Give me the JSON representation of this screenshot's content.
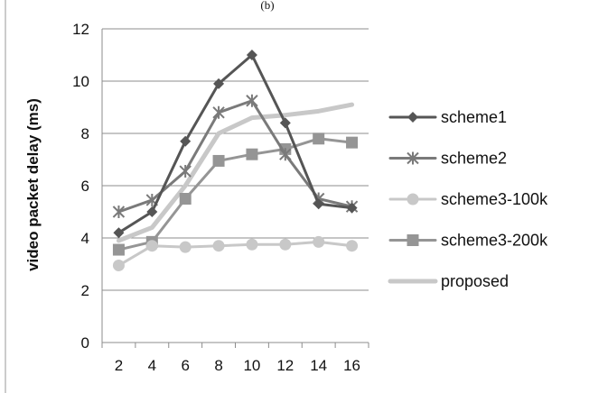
{
  "chart_data": {
    "type": "line",
    "title": "(b)",
    "xlabel": "",
    "ylabel": "video packet delay (ms)",
    "x": [
      2,
      4,
      6,
      8,
      10,
      12,
      14,
      16
    ],
    "ylim": [
      0,
      12
    ],
    "yticks": [
      0,
      2,
      4,
      6,
      8,
      10,
      12
    ],
    "grid": "horizontal",
    "legend_position": "right",
    "series": [
      {
        "name": "scheme1",
        "values": [
          4.2,
          5.0,
          7.7,
          9.9,
          11.0,
          8.4,
          5.3,
          5.15
        ],
        "color": "#555555",
        "marker": "diamond",
        "width": 3
      },
      {
        "name": "scheme2",
        "values": [
          5.0,
          5.45,
          6.55,
          8.8,
          9.25,
          7.2,
          5.5,
          5.2
        ],
        "color": "#7a7a7a",
        "marker": "star",
        "width": 3
      },
      {
        "name": "scheme3-100k",
        "values": [
          2.95,
          3.7,
          3.65,
          3.7,
          3.75,
          3.75,
          3.85,
          3.7
        ],
        "color": "#c8c8c8",
        "marker": "circle",
        "width": 3
      },
      {
        "name": "scheme3-200k",
        "values": [
          3.55,
          3.85,
          5.5,
          6.95,
          7.2,
          7.4,
          7.8,
          7.65
        ],
        "color": "#959595",
        "marker": "square",
        "width": 3
      },
      {
        "name": "proposed",
        "values": [
          3.9,
          4.4,
          6.0,
          8.0,
          8.6,
          8.7,
          8.85,
          9.1
        ],
        "color": "#c8c8c8",
        "marker": "none",
        "width": 5
      }
    ]
  }
}
